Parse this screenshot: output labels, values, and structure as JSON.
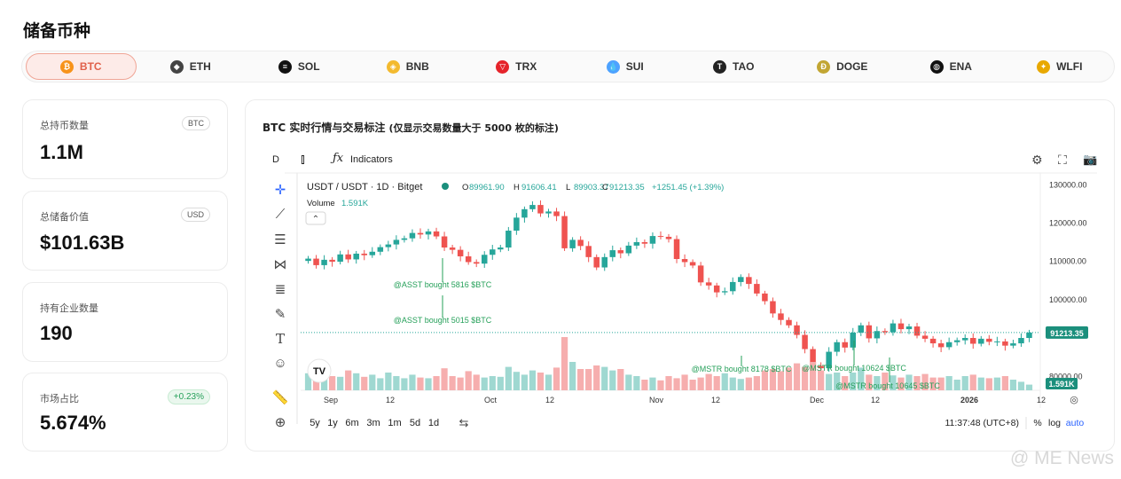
{
  "page_title": "储备币种",
  "coins": [
    {
      "label": "BTC",
      "icon": "bitcoin-icon",
      "color": "#f7931a",
      "glyph": "₿"
    },
    {
      "label": "ETH",
      "icon": "ethereum-icon",
      "color": "#444444",
      "glyph": "◆"
    },
    {
      "label": "SOL",
      "icon": "solana-icon",
      "color": "#111111",
      "glyph": "≡"
    },
    {
      "label": "BNB",
      "icon": "bnb-icon",
      "color": "#f3ba2f",
      "glyph": "◈"
    },
    {
      "label": "TRX",
      "icon": "tron-icon",
      "color": "#e5242b",
      "glyph": "▽"
    },
    {
      "label": "SUI",
      "icon": "sui-icon",
      "color": "#4da2ff",
      "glyph": "💧"
    },
    {
      "label": "TAO",
      "icon": "bittensor-icon",
      "color": "#222222",
      "glyph": "T"
    },
    {
      "label": "DOGE",
      "icon": "dogecoin-icon",
      "color": "#c2a633",
      "glyph": "Ð"
    },
    {
      "label": "ENA",
      "icon": "ethena-icon",
      "color": "#111111",
      "glyph": "◍"
    },
    {
      "label": "WLFI",
      "icon": "wlfi-icon",
      "color": "#e8a800",
      "glyph": "✦"
    }
  ],
  "stats": [
    {
      "label": "总持币数量",
      "value": "1.1M",
      "unit": "BTC"
    },
    {
      "label": "总储备价值",
      "value": "$101.63B",
      "unit": "USD"
    },
    {
      "label": "持有企业数量",
      "value": "190"
    },
    {
      "label": "市场占比",
      "value": "5.674%",
      "change": "+0.23%"
    }
  ],
  "chart_header": {
    "title": "BTC 实时行情与交易标注",
    "note": "(仅显示交易数量大于 5000 枚的标注)"
  },
  "toolbar": {
    "interval": "D",
    "indicators": "Indicators"
  },
  "legend": {
    "symbol": "USDT / USDT · 1D · Bitget",
    "open_label": "O",
    "open": "89961.90",
    "high_label": "H",
    "high": "91606.41",
    "low_label": "L",
    "low": "89903.37",
    "close_label": "C",
    "close": "91213.35",
    "change": "+1251.45 (+1.39%)",
    "volume_label": "Volume",
    "volume": "1.591K"
  },
  "price_tag": "91213.35",
  "volume_tag": "1.591K",
  "ranges": [
    "5y",
    "1y",
    "6m",
    "3m",
    "1m",
    "5d",
    "1d"
  ],
  "time_display": "11:37:48 (UTC+8)",
  "scale_options": [
    "%",
    "log",
    "auto"
  ],
  "watermark": "@ ME News",
  "chart_data": {
    "type": "candlestick",
    "symbol": "USDT / USDT · 1D · Bitget",
    "x_ticks": [
      "Sep",
      "12",
      "Oct",
      "12",
      "Nov",
      "12",
      "Dec",
      "12",
      "2026",
      "12"
    ],
    "y_ticks": [
      "130000.00",
      "120000.00",
      "110000.00",
      "100000.00",
      "80000.00"
    ],
    "ylim": [
      78000,
      131000
    ],
    "close_series": [
      110500,
      108800,
      110200,
      109700,
      111600,
      110300,
      111800,
      111400,
      112300,
      113500,
      114200,
      115400,
      115800,
      117200,
      116800,
      117600,
      116300,
      113400,
      112800,
      111100,
      109600,
      109200,
      111500,
      112900,
      113400,
      117800,
      121200,
      123400,
      124500,
      122300,
      122800,
      121600,
      113200,
      115400,
      113800,
      110900,
      108200,
      110900,
      112700,
      111900,
      113900,
      114800,
      114400,
      116400,
      116200,
      115600,
      110400,
      109600,
      108700,
      104300,
      103500,
      101700,
      102000,
      104400,
      105700,
      103900,
      101400,
      99400,
      96200,
      94500,
      93100,
      90600,
      86900,
      82500,
      81900,
      86200,
      88700,
      87300,
      91200,
      93100,
      89700,
      91600,
      91300,
      93600,
      92100,
      92800,
      90400,
      89600,
      88400,
      87400,
      88700,
      89200,
      89800,
      88300,
      89600,
      88800,
      88900,
      87800,
      88400,
      89800,
      91213
    ],
    "volume_series": [
      24,
      18,
      22,
      20,
      19,
      28,
      24,
      19,
      22,
      17,
      25,
      20,
      17,
      22,
      18,
      17,
      20,
      31,
      20,
      18,
      27,
      22,
      18,
      20,
      19,
      33,
      26,
      22,
      28,
      25,
      22,
      32,
      75,
      40,
      30,
      30,
      35,
      33,
      28,
      30,
      22,
      20,
      15,
      18,
      14,
      20,
      17,
      22,
      15,
      18,
      23,
      20,
      24,
      18,
      16,
      18,
      20,
      28,
      30,
      27,
      32,
      38,
      33,
      40,
      28,
      23,
      25,
      20,
      25,
      32,
      22,
      20,
      25,
      21,
      18,
      22,
      20,
      23,
      18,
      18,
      20,
      15,
      20,
      22,
      18,
      17,
      18,
      20,
      15,
      12,
      8
    ],
    "annotations": [
      {
        "text": "@ASST bought 5816 $BTC"
      },
      {
        "text": "@ASST bought 5015 $BTC"
      },
      {
        "text": "@MSTR bought 8178 $BTC"
      },
      {
        "text": "@MSTR bought 10624 $BTC"
      },
      {
        "text": "@MSTR bought 10645 $BTC"
      }
    ],
    "up_color": "#26a69a",
    "down_color": "#ef5350",
    "annotation_color": "#26a05a",
    "last_price": 91213.35
  }
}
